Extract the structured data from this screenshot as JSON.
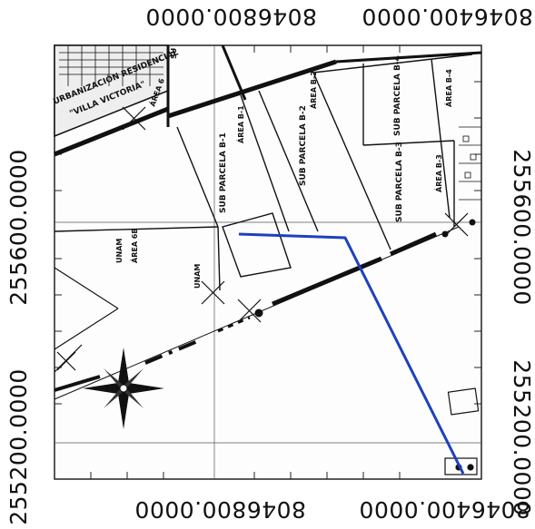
{
  "coordinates": {
    "top_left": "8046800.0000",
    "top_right": "8046400.0000",
    "bottom_center": "8046800.0000",
    "bottom_right": "8046400.0000",
    "left_upper": "255600.0000",
    "left_lower": "255200.0000",
    "right_upper": "255600.0000",
    "right_lower": "255200.0000"
  },
  "map_labels": {
    "urbanizacion_line1": "URBANIZACIÓN RESIDENCIAL",
    "urbanizacion_line2": "\"VILLA VICTORIA\"",
    "area_6": "ÁREA 6",
    "area_b1": "ÁREA B-1",
    "area_b2": "ÁREA B-2",
    "area_b3": "ÁREA B-3",
    "area_b4": "ÁREA B-4",
    "area_6b": "ÁREA 6B",
    "sub_b1": "SUB PARCELA B-1",
    "sub_b2": "SUB PARCELA B-2",
    "sub_b3": "SUB PARCELA B-3",
    "sub_b4": "SUB PARCELA B-4",
    "unam_1": "UNAM",
    "unam_2": "UNAM",
    "su": "SU"
  },
  "colors": {
    "route_line": "#1f3fbf",
    "ink": "#111111"
  }
}
